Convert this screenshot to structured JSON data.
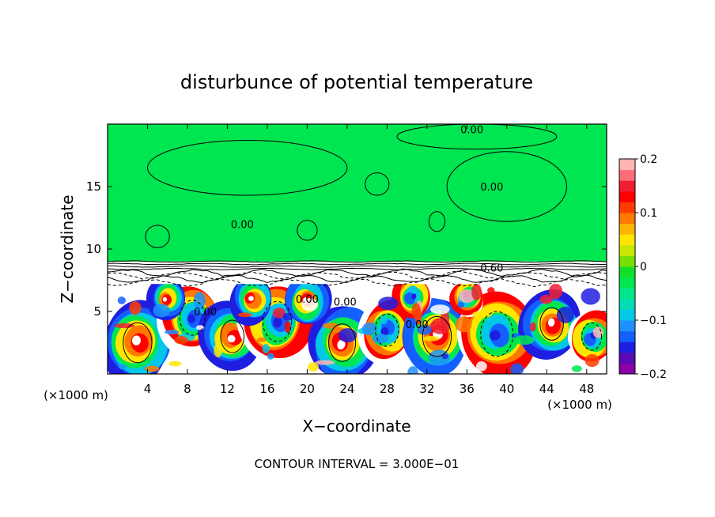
{
  "chart_data": {
    "type": "heatmap",
    "title": "disturbunce of potential temperature",
    "xlabel": "X−coordinate",
    "ylabel": "Z−coordinate",
    "x_unit": "(×1000 m)",
    "x_unit_right": "(×1000 m)",
    "footer": "CONTOUR INTERVAL = 3.000E−01",
    "xlim": [
      0,
      50
    ],
    "ylim": [
      0,
      20
    ],
    "x_ticks": [
      4,
      8,
      12,
      16,
      20,
      24,
      28,
      32,
      36,
      40,
      44,
      48
    ],
    "y_ticks": [
      5,
      10,
      15
    ],
    "contour_labels": [
      {
        "text": "0.00",
        "x": 36.5,
        "y": 19.6
      },
      {
        "text": "0.00",
        "x": 38.5,
        "y": 15.0
      },
      {
        "text": "0.00",
        "x": 13.5,
        "y": 12.0
      },
      {
        "text": "0.60",
        "x": 38.5,
        "y": 8.5
      },
      {
        "text": "0.00",
        "x": 20.0,
        "y": 6.0
      },
      {
        "text": "0.00",
        "x": 31.0,
        "y": 4.0
      },
      {
        "text": "0.00",
        "x": 9.8,
        "y": 5.0
      },
      {
        "text": "0.00",
        "x": 23.8,
        "y": 5.8
      }
    ],
    "colorbar": {
      "min": -0.2,
      "max": 0.2,
      "tick_labels": [
        "0.2",
        "0.1",
        "0",
        "−0.1",
        "−0.2"
      ],
      "tick_values": [
        0.2,
        0.1,
        0.0,
        -0.1,
        -0.2
      ],
      "colors": [
        "#8a00a8",
        "#5a0ab4",
        "#1e1ee0",
        "#1460ff",
        "#1e90ff",
        "#00c8e6",
        "#00dcb4",
        "#00e68c",
        "#00e650",
        "#10e028",
        "#78e000",
        "#c8e600",
        "#ffe600",
        "#ffb400",
        "#ff7800",
        "#ff3c00",
        "#ff0000",
        "#f01e32",
        "#ff6e78",
        "#ffb4b4"
      ]
    },
    "regions": {
      "upper": {
        "z_range": [
          9,
          20
        ],
        "value": 0.0,
        "color": "#00e650"
      },
      "inversion_band": {
        "z_range": [
          7.2,
          9.0
        ],
        "color": "#ffffff"
      },
      "lower": {
        "z_range": [
          0,
          7.2
        ],
        "value_range": [
          -0.2,
          0.2
        ]
      }
    }
  }
}
